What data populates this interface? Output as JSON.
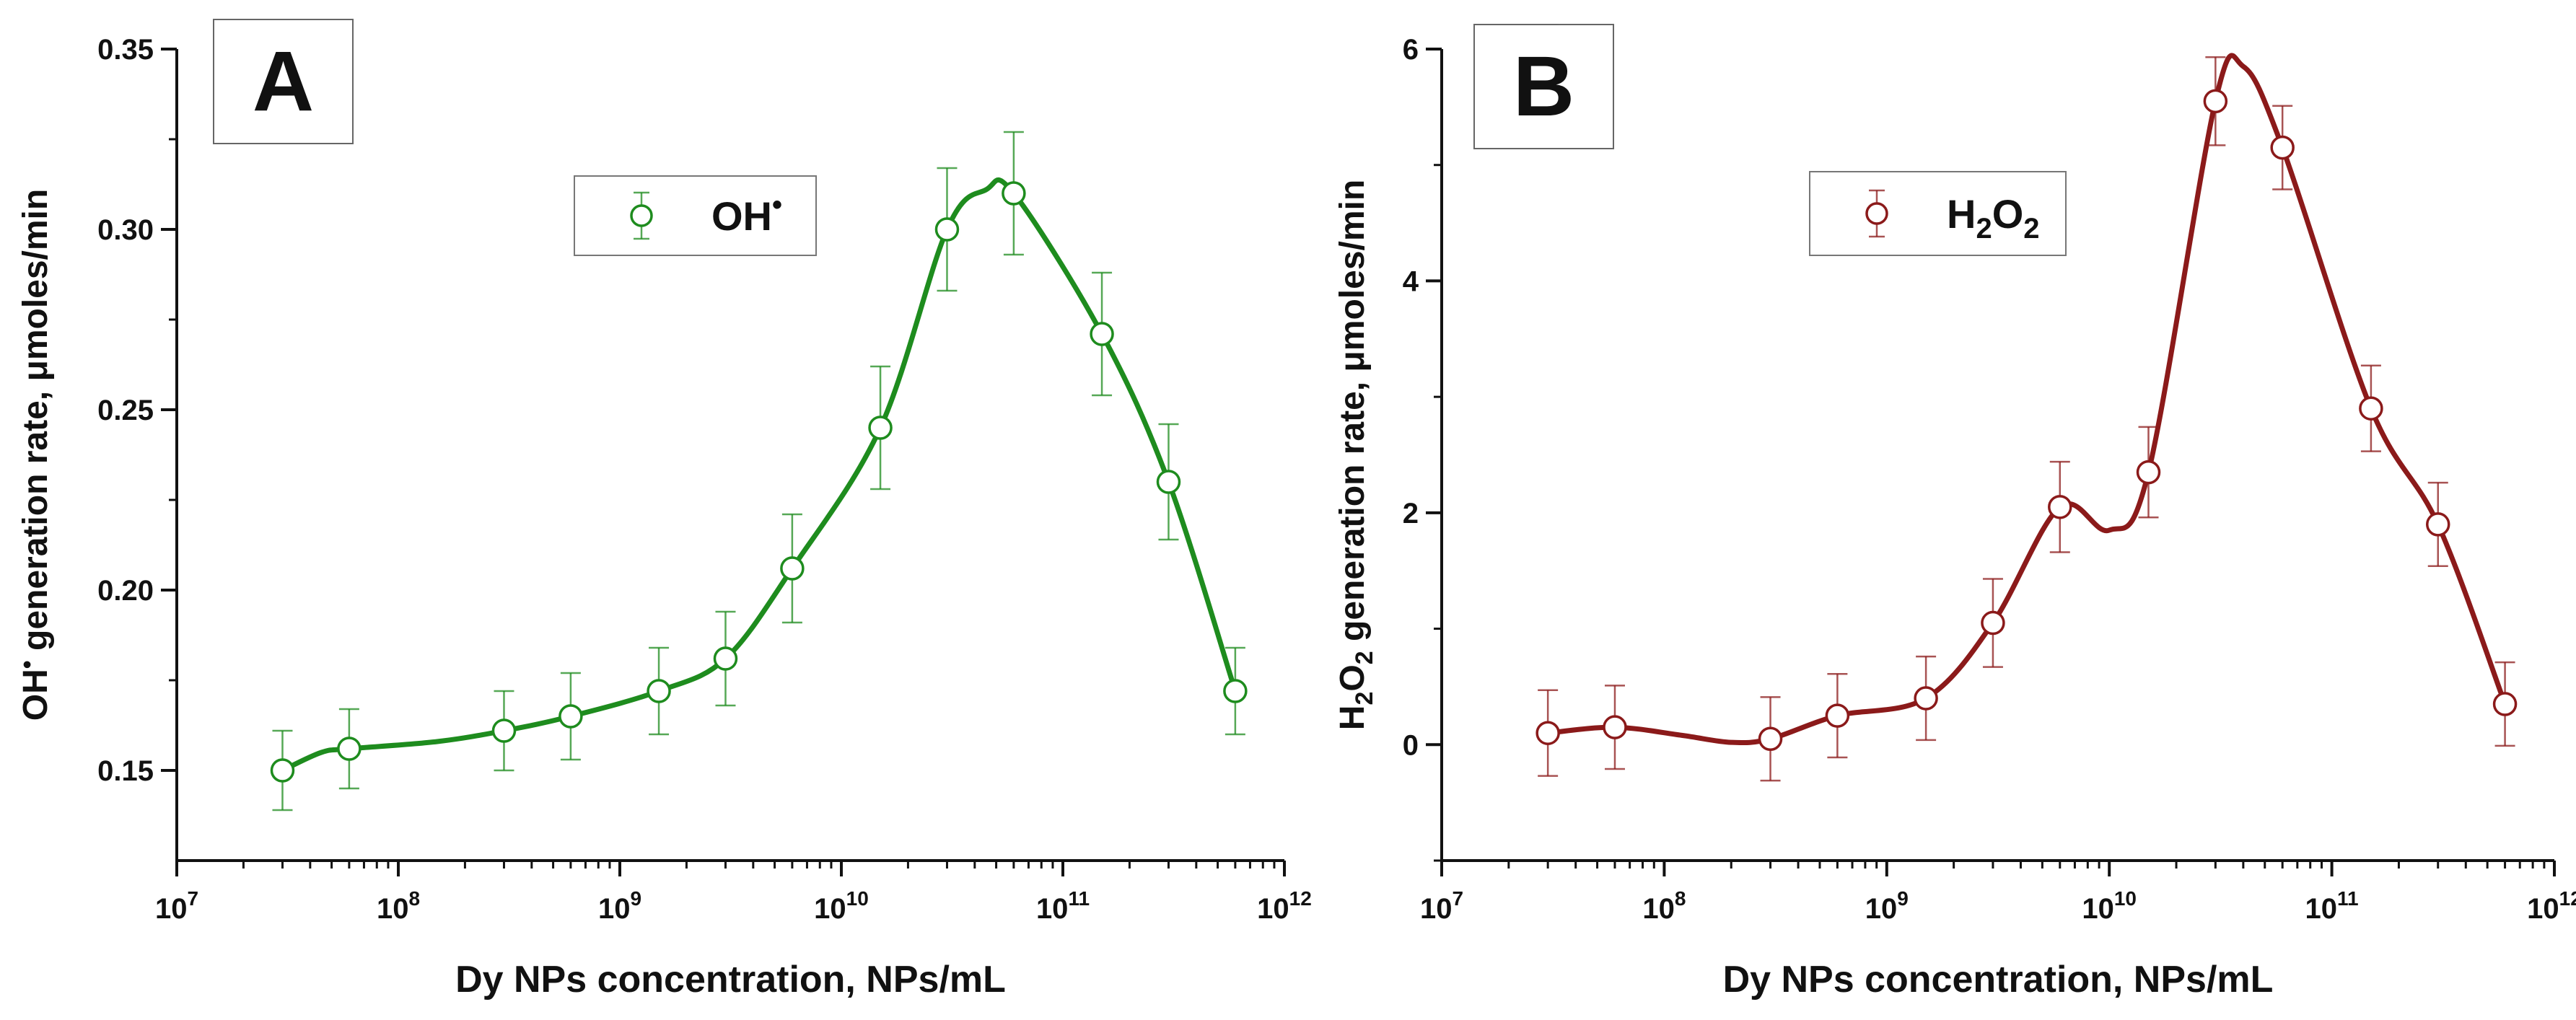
{
  "chart_data": [
    {
      "type": "line",
      "panel_label": "A",
      "color": "#1e8c1e",
      "xscale": "log",
      "xlim": [
        10000000,
        1000000000000
      ],
      "ylim": [
        0.125,
        0.35
      ],
      "ylabel": {
        "base": "OH",
        "sup": "•",
        "rest": " generation rate, μmoles/min"
      },
      "xlabel": "Dy NPs concentration, NPs/mL",
      "legend": {
        "base": "OH",
        "sup": "•",
        "sub": "",
        "tail": "",
        "position": "top-center"
      },
      "x_ticks": [
        {
          "value": 10000000,
          "base": "10",
          "exp": "7"
        },
        {
          "value": 100000000,
          "base": "10",
          "exp": "8"
        },
        {
          "value": 1000000000,
          "base": "10",
          "exp": "9"
        },
        {
          "value": 10000000000,
          "base": "10",
          "exp": "10"
        },
        {
          "value": 100000000000,
          "base": "10",
          "exp": "11"
        },
        {
          "value": 1000000000000,
          "base": "10",
          "exp": "12"
        }
      ],
      "y_ticks": [
        {
          "value": 0.15,
          "label": "0.15"
        },
        {
          "value": 0.2,
          "label": "0.20"
        },
        {
          "value": 0.25,
          "label": "0.25"
        },
        {
          "value": 0.3,
          "label": "0.30"
        },
        {
          "value": 0.35,
          "label": "0.35"
        }
      ],
      "points": [
        {
          "x": 30000000,
          "y": 0.15,
          "err": 0.011
        },
        {
          "x": 60000000,
          "y": 0.156,
          "err": 0.011
        },
        {
          "x": 300000000,
          "y": 0.161,
          "err": 0.011
        },
        {
          "x": 600000000,
          "y": 0.165,
          "err": 0.012
        },
        {
          "x": 1500000000,
          "y": 0.172,
          "err": 0.012
        },
        {
          "x": 3000000000,
          "y": 0.181,
          "err": 0.013
        },
        {
          "x": 6000000000,
          "y": 0.206,
          "err": 0.015
        },
        {
          "x": 15000000000,
          "y": 0.245,
          "err": 0.017
        },
        {
          "x": 30000000000,
          "y": 0.3,
          "err": 0.017
        },
        {
          "x": 60000000000,
          "y": 0.31,
          "err": 0.017
        },
        {
          "x": 150000000000,
          "y": 0.271,
          "err": 0.017
        },
        {
          "x": 300000000000,
          "y": 0.23,
          "err": 0.016
        },
        {
          "x": 600000000000,
          "y": 0.172,
          "err": 0.012
        }
      ],
      "curve": [
        {
          "x": 30000000,
          "y": 0.15
        },
        {
          "x": 45000000,
          "y": 0.155
        },
        {
          "x": 60000000,
          "y": 0.156
        },
        {
          "x": 150000000,
          "y": 0.158
        },
        {
          "x": 300000000,
          "y": 0.161
        },
        {
          "x": 600000000,
          "y": 0.165
        },
        {
          "x": 1500000000,
          "y": 0.172
        },
        {
          "x": 3000000000,
          "y": 0.181
        },
        {
          "x": 6000000000,
          "y": 0.206
        },
        {
          "x": 15000000000,
          "y": 0.245
        },
        {
          "x": 30000000000,
          "y": 0.3
        },
        {
          "x": 45000000000,
          "y": 0.311
        },
        {
          "x": 60000000000,
          "y": 0.31
        },
        {
          "x": 150000000000,
          "y": 0.271
        },
        {
          "x": 300000000000,
          "y": 0.23
        },
        {
          "x": 600000000000,
          "y": 0.172
        }
      ]
    },
    {
      "type": "line",
      "panel_label": "B",
      "color": "#8b1a1a",
      "xscale": "log",
      "xlim": [
        10000000,
        1000000000000
      ],
      "ylim": [
        -1,
        6
      ],
      "ylabel": {
        "base": "H",
        "sub": "2",
        "rest_base": "O",
        "rest_sub": "2",
        "rest": " generation rate, μmoles/min"
      },
      "xlabel": "Dy NPs concentration, NPs/mL",
      "legend": {
        "base": "H",
        "sup": "",
        "sub": "2",
        "tail": "O",
        "tail_sub": "2",
        "position": "top-center"
      },
      "x_ticks": [
        {
          "value": 10000000,
          "base": "10",
          "exp": "7"
        },
        {
          "value": 100000000,
          "base": "10",
          "exp": "8"
        },
        {
          "value": 1000000000,
          "base": "10",
          "exp": "9"
        },
        {
          "value": 10000000000,
          "base": "10",
          "exp": "10"
        },
        {
          "value": 100000000000,
          "base": "10",
          "exp": "11"
        },
        {
          "value": 1000000000000,
          "base": "10",
          "exp": "12"
        }
      ],
      "y_ticks": [
        {
          "value": 0,
          "label": "0"
        },
        {
          "value": 2,
          "label": "2"
        },
        {
          "value": 4,
          "label": "4"
        },
        {
          "value": 6,
          "label": "6"
        }
      ],
      "points": [
        {
          "x": 30000000,
          "y": 0.1,
          "err": 0.37
        },
        {
          "x": 60000000,
          "y": 0.15,
          "err": 0.36
        },
        {
          "x": 300000000,
          "y": 0.05,
          "err": 0.36
        },
        {
          "x": 600000000,
          "y": 0.25,
          "err": 0.36
        },
        {
          "x": 1500000000,
          "y": 0.4,
          "err": 0.36
        },
        {
          "x": 3000000000,
          "y": 1.05,
          "err": 0.38
        },
        {
          "x": 6000000000,
          "y": 2.05,
          "err": 0.39
        },
        {
          "x": 15000000000,
          "y": 2.35,
          "err": 0.39
        },
        {
          "x": 30000000000,
          "y": 5.55,
          "err": 0.38
        },
        {
          "x": 60000000000,
          "y": 5.15,
          "err": 0.36
        },
        {
          "x": 150000000000,
          "y": 2.9,
          "err": 0.37
        },
        {
          "x": 300000000000,
          "y": 1.9,
          "err": 0.36
        },
        {
          "x": 600000000000,
          "y": 0.35,
          "err": 0.36
        }
      ],
      "curve": [
        {
          "x": 30000000,
          "y": 0.1
        },
        {
          "x": 60000000,
          "y": 0.15
        },
        {
          "x": 120000000,
          "y": 0.08
        },
        {
          "x": 200000000,
          "y": 0.02
        },
        {
          "x": 300000000,
          "y": 0.05
        },
        {
          "x": 600000000,
          "y": 0.25
        },
        {
          "x": 1500000000,
          "y": 0.4
        },
        {
          "x": 3000000000,
          "y": 1.05
        },
        {
          "x": 6000000000,
          "y": 2.05
        },
        {
          "x": 10000000000,
          "y": 1.85
        },
        {
          "x": 15000000000,
          "y": 2.35
        },
        {
          "x": 30000000000,
          "y": 5.55
        },
        {
          "x": 40000000000,
          "y": 5.85
        },
        {
          "x": 60000000000,
          "y": 5.15
        },
        {
          "x": 150000000000,
          "y": 2.9
        },
        {
          "x": 300000000000,
          "y": 1.9
        },
        {
          "x": 600000000000,
          "y": 0.35
        }
      ]
    }
  ]
}
